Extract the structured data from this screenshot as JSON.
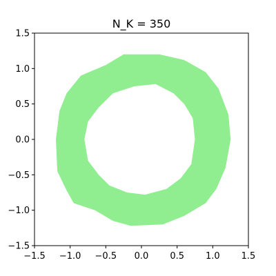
{
  "chart_data": {
    "type": "area",
    "title": "N_K = 350",
    "xlabel": "",
    "ylabel": "",
    "xlim": [
      -1.5,
      1.5
    ],
    "ylim": [
      -1.5,
      1.5
    ],
    "xticks": [
      -1.5,
      -1.0,
      -0.5,
      0.0,
      0.5,
      1.0,
      1.5
    ],
    "yticks": [
      -1.5,
      -1.0,
      -0.5,
      0.0,
      0.5,
      1.0,
      1.5
    ],
    "xtick_labels": [
      "−1.5",
      "−1.0",
      "−0.5",
      "0.0",
      "0.5",
      "1.0",
      "1.5"
    ],
    "ytick_labels": [
      "−1.5",
      "−1.0",
      "−0.5",
      "0.0",
      "0.5",
      "1.0",
      "1.5"
    ],
    "grid": false,
    "legend": false,
    "fill_color": "#90ee90",
    "outer_boundary": [
      [
        1.25,
        0.0
      ],
      [
        1.22,
        0.35
      ],
      [
        1.08,
        0.72
      ],
      [
        0.9,
        0.95
      ],
      [
        0.6,
        1.12
      ],
      [
        0.25,
        1.2
      ],
      [
        -0.25,
        1.2
      ],
      [
        -0.5,
        1.05
      ],
      [
        -0.85,
        0.9
      ],
      [
        -1.05,
        0.65
      ],
      [
        -1.15,
        0.4
      ],
      [
        -1.2,
        0.0
      ],
      [
        -1.18,
        -0.45
      ],
      [
        -1.05,
        -0.72
      ],
      [
        -0.95,
        -0.9
      ],
      [
        -0.65,
        -1.0
      ],
      [
        -0.4,
        -1.15
      ],
      [
        -0.15,
        -1.22
      ],
      [
        0.3,
        -1.2
      ],
      [
        0.6,
        -1.08
      ],
      [
        0.9,
        -0.9
      ],
      [
        1.05,
        -0.7
      ],
      [
        1.18,
        -0.4
      ]
    ],
    "inner_boundary": [
      [
        0.75,
        0.0
      ],
      [
        0.72,
        0.3
      ],
      [
        0.6,
        0.5
      ],
      [
        0.45,
        0.65
      ],
      [
        0.2,
        0.78
      ],
      [
        -0.1,
        0.75
      ],
      [
        -0.4,
        0.65
      ],
      [
        -0.6,
        0.45
      ],
      [
        -0.75,
        0.25
      ],
      [
        -0.8,
        0.0
      ],
      [
        -0.75,
        -0.3
      ],
      [
        -0.6,
        -0.5
      ],
      [
        -0.45,
        -0.65
      ],
      [
        -0.2,
        -0.75
      ],
      [
        0.05,
        -0.78
      ],
      [
        0.35,
        -0.7
      ],
      [
        0.55,
        -0.55
      ],
      [
        0.7,
        -0.35
      ]
    ]
  }
}
